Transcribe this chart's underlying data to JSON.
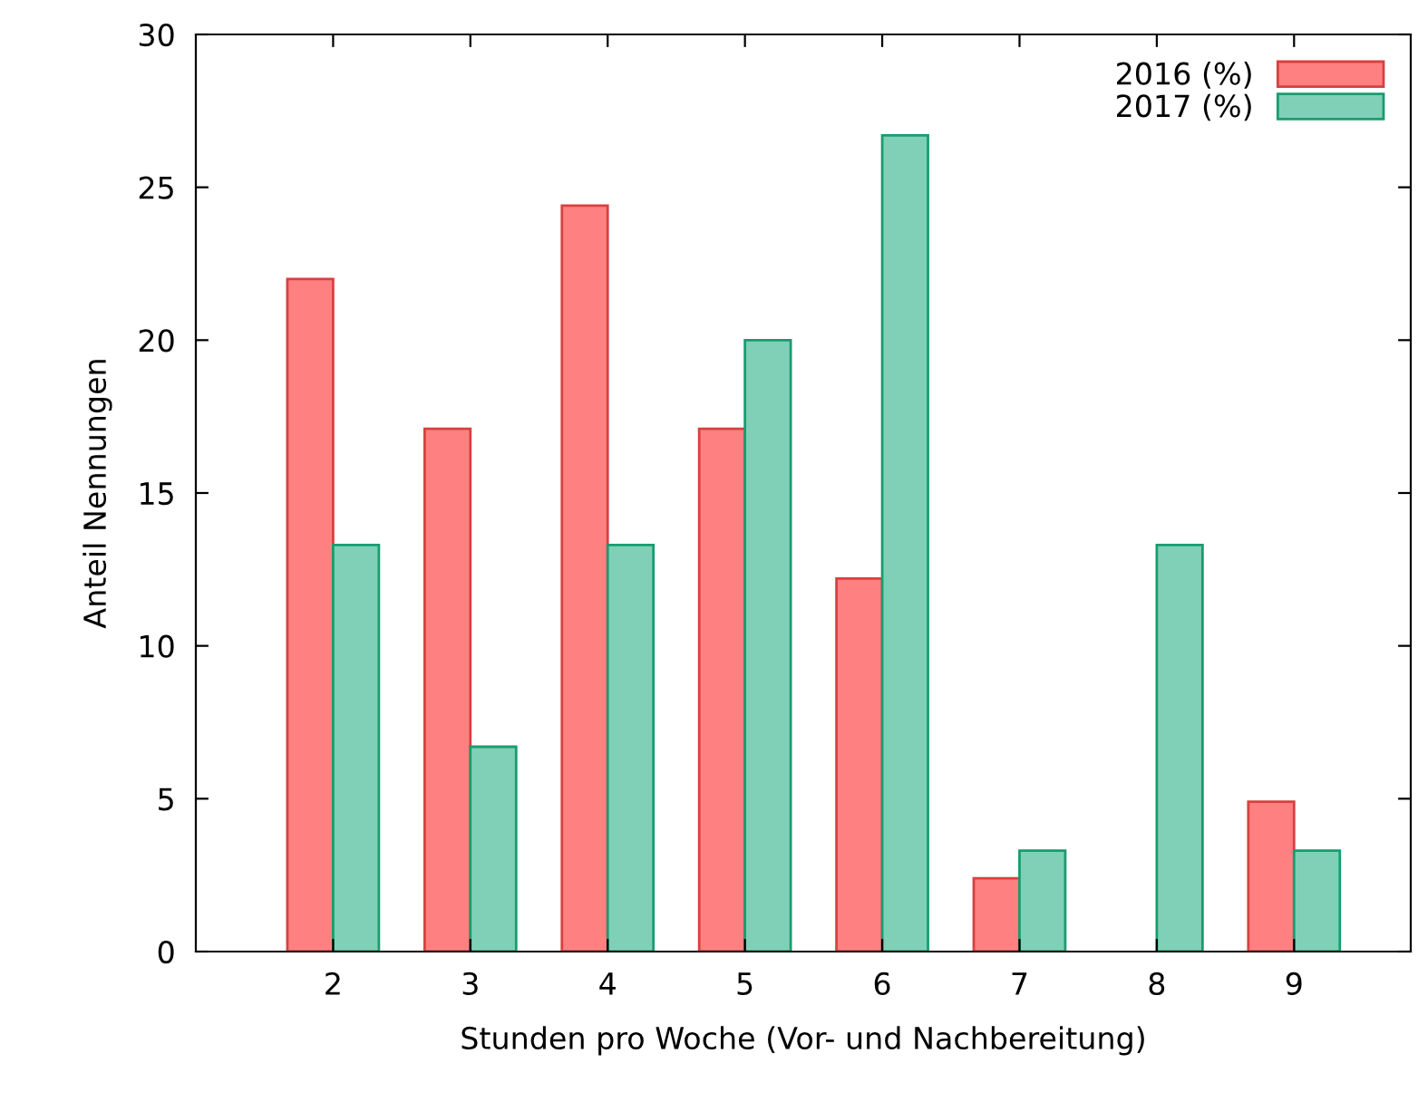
{
  "chart_data": {
    "type": "bar",
    "xlabel": "Stunden pro Woche (Vor- und Nachbereitung)",
    "ylabel": "Anteil Nennungen",
    "x": [
      2,
      3,
      4,
      5,
      6,
      7,
      8,
      9
    ],
    "series": [
      {
        "name": "2016 (%)",
        "color": "#ff8080",
        "values": [
          22.0,
          17.1,
          24.4,
          17.1,
          12.2,
          2.4,
          null,
          4.9
        ]
      },
      {
        "name": "2017 (%)",
        "color": "#80d0b8",
        "values": [
          13.3,
          6.7,
          13.3,
          20.0,
          26.7,
          3.3,
          13.3,
          3.3
        ]
      }
    ],
    "xlim": [
      1,
      9.85
    ],
    "xticks": [
      2,
      3,
      4,
      5,
      6,
      7,
      8,
      9
    ],
    "ylim": [
      0,
      30
    ],
    "yticks": [
      0,
      5,
      10,
      15,
      20,
      25,
      30
    ],
    "grid": false,
    "legend": "top right"
  }
}
